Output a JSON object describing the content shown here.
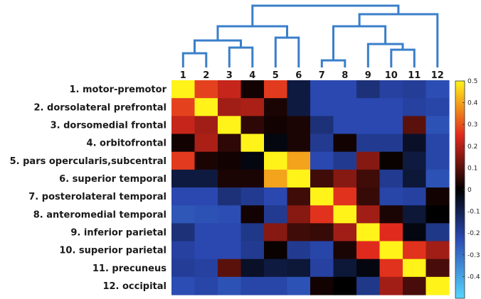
{
  "chart_data": {
    "type": "heatmap",
    "title": "",
    "xlabel": "",
    "ylabel": "",
    "column_labels": [
      "1",
      "2",
      "3",
      "4",
      "5",
      "6",
      "7",
      "8",
      "9",
      "10",
      "11",
      "12"
    ],
    "row_labels": [
      "1. motor-premotor",
      "2. dorsolateral prefrontal",
      "3. dorsomedial frontal",
      "4. orbitofrontal",
      "5. pars opercularis,subcentral",
      "6. superior temporal",
      "7. posterolateral temporal",
      "8. anteromedial temporal",
      "9. inferior parietal",
      "10. superior parietal",
      "11. precuneus",
      "12. occipital"
    ],
    "values": [
      [
        0.5,
        0.28,
        0.22,
        0.02,
        0.27,
        -0.08,
        -0.22,
        -0.22,
        -0.15,
        -0.2,
        -0.19,
        -0.23
      ],
      [
        0.28,
        0.5,
        0.18,
        0.19,
        0.03,
        -0.08,
        -0.22,
        -0.22,
        -0.22,
        -0.22,
        -0.2,
        -0.21
      ],
      [
        0.22,
        0.18,
        0.5,
        0.05,
        0.02,
        0.03,
        -0.15,
        -0.22,
        -0.22,
        -0.22,
        0.1,
        -0.24
      ],
      [
        0.02,
        0.19,
        0.05,
        0.5,
        -0.02,
        0.03,
        -0.18,
        0.02,
        -0.18,
        -0.18,
        -0.05,
        -0.21
      ],
      [
        0.27,
        0.03,
        0.02,
        -0.02,
        0.5,
        0.4,
        -0.22,
        -0.18,
        0.15,
        0.01,
        -0.08,
        -0.21
      ],
      [
        -0.08,
        -0.08,
        0.03,
        0.03,
        0.4,
        0.5,
        0.07,
        0.15,
        0.07,
        -0.18,
        -0.07,
        -0.24
      ],
      [
        -0.22,
        -0.22,
        -0.15,
        -0.18,
        -0.22,
        0.07,
        0.5,
        0.26,
        0.06,
        -0.21,
        -0.2,
        0.02
      ],
      [
        -0.25,
        -0.24,
        -0.23,
        0.02,
        -0.18,
        0.15,
        0.26,
        0.5,
        0.18,
        0.03,
        -0.07,
        0.0
      ],
      [
        -0.15,
        -0.22,
        -0.22,
        -0.17,
        0.15,
        0.07,
        0.06,
        0.18,
        0.5,
        0.25,
        -0.02,
        -0.17
      ],
      [
        -0.2,
        -0.22,
        -0.22,
        -0.18,
        0.01,
        -0.18,
        -0.21,
        0.03,
        0.25,
        0.5,
        0.26,
        0.18
      ],
      [
        -0.19,
        -0.2,
        0.1,
        -0.05,
        -0.08,
        -0.07,
        -0.2,
        -0.07,
        -0.02,
        0.26,
        0.5,
        0.08
      ],
      [
        -0.23,
        -0.21,
        -0.24,
        -0.21,
        -0.21,
        -0.24,
        0.02,
        0.0,
        -0.17,
        0.18,
        0.08,
        0.5
      ]
    ],
    "colorbar": {
      "min": -0.5,
      "max": 0.5,
      "ticks": [
        "0.5",
        "0.4",
        "0.3",
        "0.2",
        "0.1",
        "0",
        "-0.1",
        "-0.2",
        "-0.3",
        "-0.4"
      ]
    },
    "has_dendrogram": true,
    "colormap": [
      "#55d6ff",
      "#2a48b0",
      "#000000",
      "#e02a1e",
      "#fff31a"
    ]
  }
}
